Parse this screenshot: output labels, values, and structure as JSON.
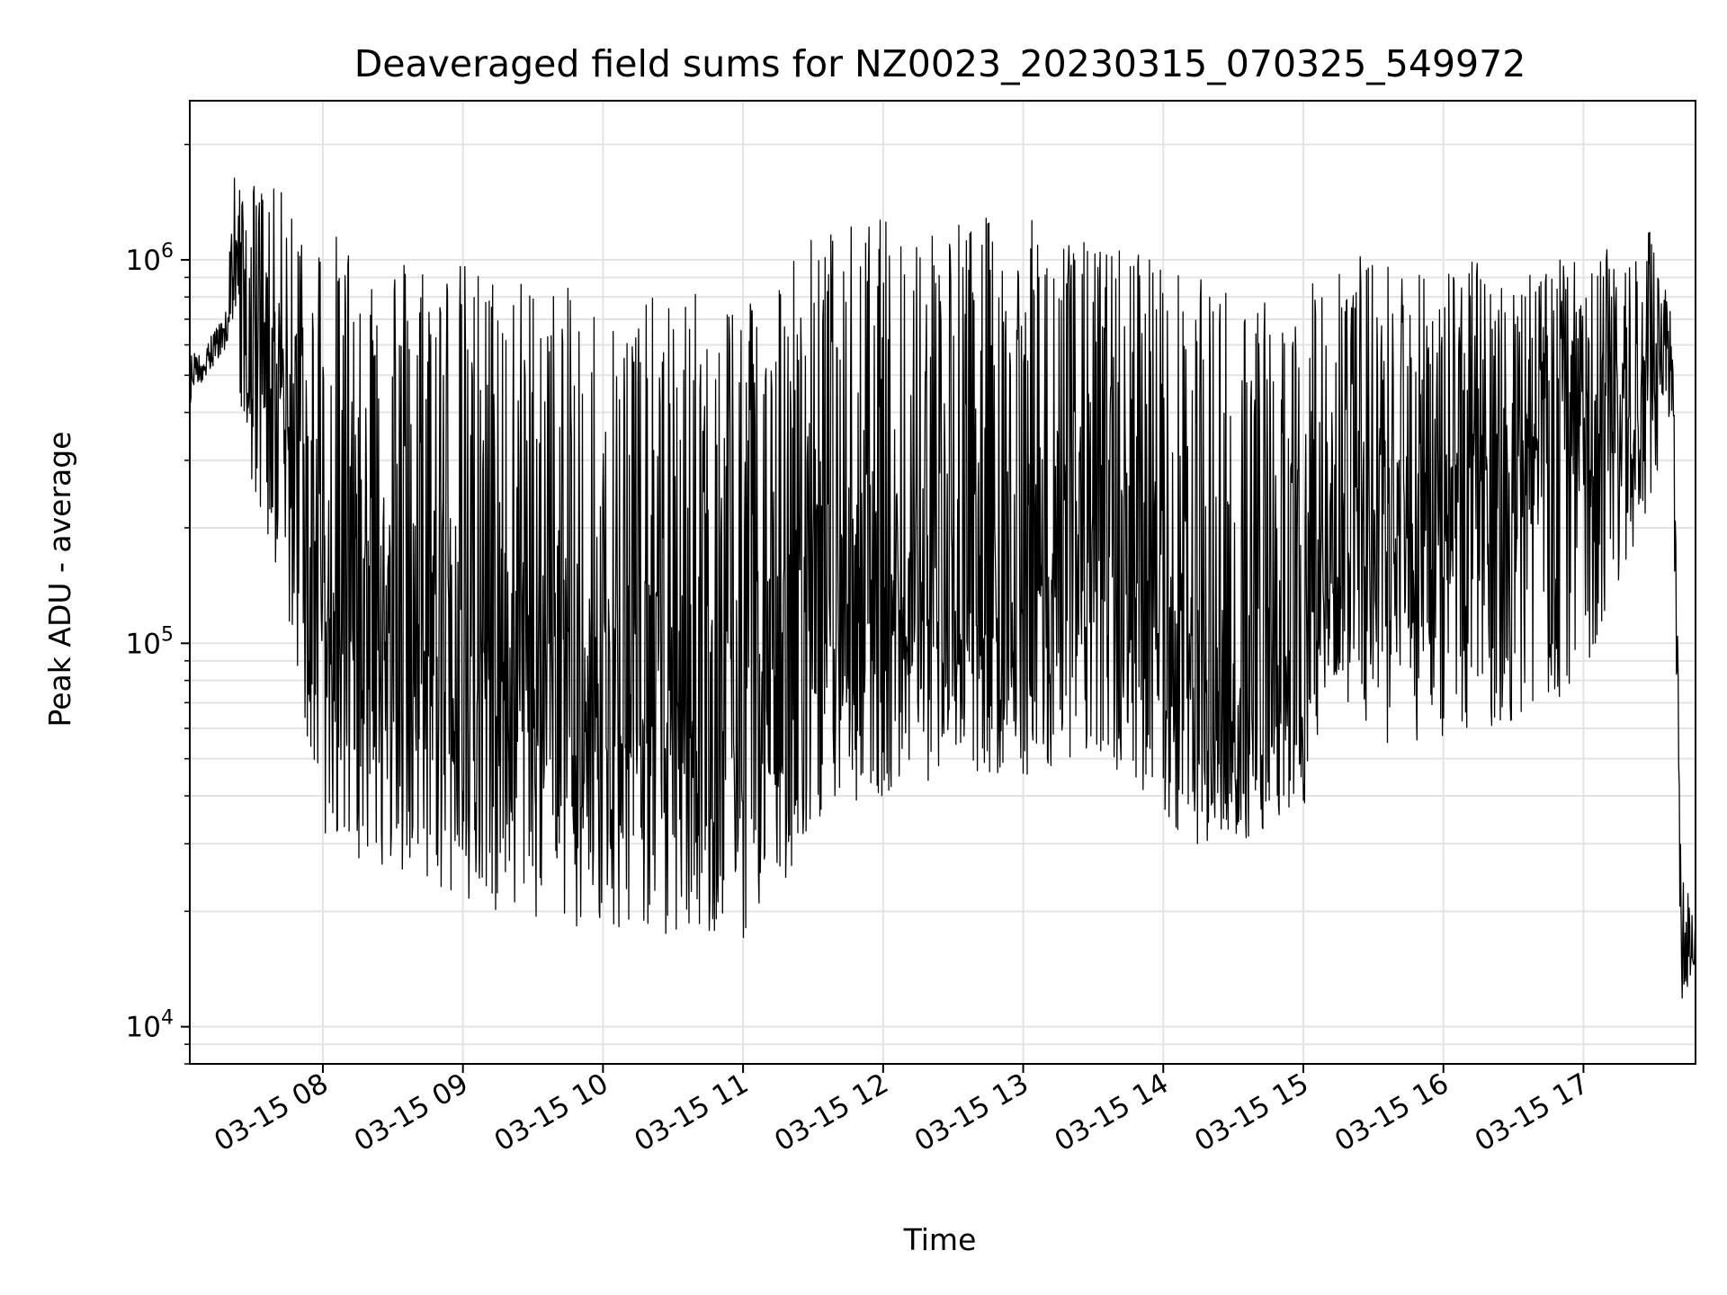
{
  "chart_data": {
    "type": "line",
    "title": "Deaveraged field sums for NZ0023_20230315_070325_549972",
    "xlabel": "Time",
    "ylabel": "Peak ADU - average",
    "yscale": "log",
    "ylim": [
      8000,
      2600000
    ],
    "xlim": [
      "03-15 07:03",
      "03-15 17:48"
    ],
    "x_ticks": [
      "03-15 08",
      "03-15 09",
      "03-15 10",
      "03-15 11",
      "03-15 12",
      "03-15 13",
      "03-15 14",
      "03-15 15",
      "03-15 16",
      "03-15 17"
    ],
    "y_ticks": [
      {
        "base": "10",
        "exp": "4",
        "value": 10000
      },
      {
        "base": "10",
        "exp": "5",
        "value": 100000
      },
      {
        "base": "10",
        "exp": "6",
        "value": 1000000
      }
    ],
    "grid": true,
    "line_color": "#000000",
    "series": [
      {
        "x": [
          "03-15 07:03",
          "03-15 07:10",
          "03-15 07:18",
          "03-15 07:22",
          "03-15 07:26",
          "03-15 07:30",
          "03-15 07:45",
          "03-15 08:00",
          "03-15 08:30",
          "03-15 09:00",
          "03-15 09:30",
          "03-15 10:00",
          "03-15 10:30",
          "03-15 11:00",
          "03-15 11:15",
          "03-15 11:30",
          "03-15 12:00",
          "03-15 12:30",
          "03-15 13:00",
          "03-15 13:30",
          "03-15 13:55",
          "03-15 14:10",
          "03-15 14:30",
          "03-15 15:00",
          "03-15 15:10",
          "03-15 15:30",
          "03-15 16:00",
          "03-15 16:30",
          "03-15 17:00",
          "03-15 17:30",
          "03-15 17:38",
          "03-15 17:42",
          "03-15 17:48"
        ],
        "y_max": [
          560000,
          640000,
          700000,
          1700000,
          1500000,
          1600000,
          1500000,
          1200000,
          1100000,
          1000000,
          900000,
          800000,
          800000,
          900000,
          1000000,
          1200000,
          1300000,
          1300000,
          1300000,
          1100000,
          1100000,
          900000,
          900000,
          700000,
          1200000,
          1000000,
          1000000,
          1000000,
          1000000,
          1200000,
          800000,
          26000,
          19000
        ],
        "y_min": [
          420000,
          500000,
          580000,
          700000,
          350000,
          250000,
          120000,
          30000,
          25000,
          20000,
          19000,
          17000,
          17000,
          17000,
          22000,
          35000,
          40000,
          45000,
          45000,
          50000,
          40000,
          30000,
          30000,
          35000,
          80000,
          55000,
          55000,
          60000,
          80000,
          250000,
          400000,
          11000,
          15000
        ],
        "y_mid": [
          480000,
          560000,
          640000,
          1000000,
          800000,
          600000,
          400000,
          150000,
          120000,
          100000,
          80000,
          70000,
          65000,
          60000,
          90000,
          120000,
          150000,
          160000,
          170000,
          160000,
          150000,
          70000,
          60000,
          80000,
          180000,
          170000,
          200000,
          300000,
          400000,
          500000,
          600000,
          15000,
          17000
        ]
      }
    ]
  }
}
